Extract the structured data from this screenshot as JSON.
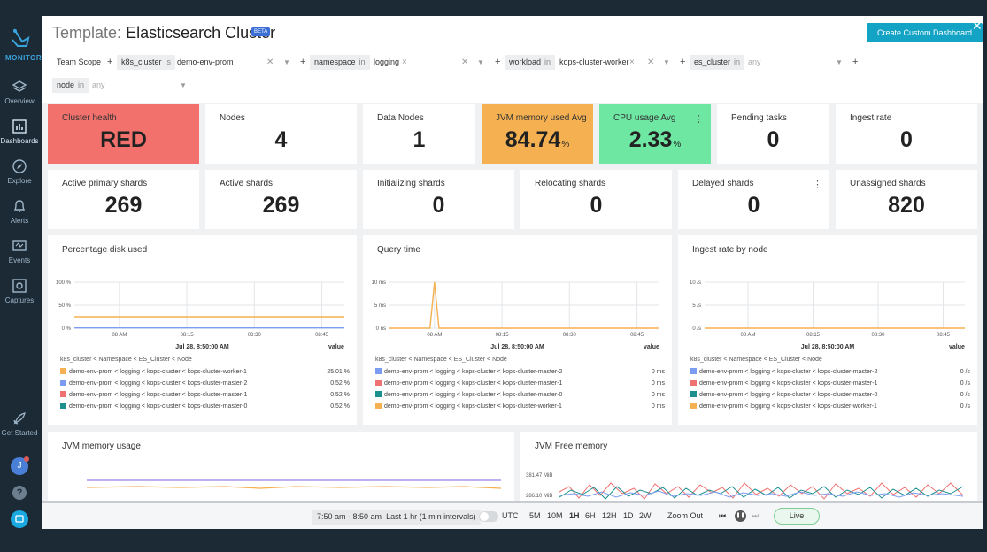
{
  "sidebar": {
    "brand": "MONITOR",
    "items": [
      {
        "label": "Overview",
        "icon": "layers-icon"
      },
      {
        "label": "Dashboards",
        "icon": "bar-chart-icon"
      },
      {
        "label": "Explore",
        "icon": "compass-icon"
      },
      {
        "label": "Alerts",
        "icon": "bell-icon"
      },
      {
        "label": "Events",
        "icon": "events-icon"
      },
      {
        "label": "Captures",
        "icon": "capture-icon"
      }
    ],
    "get_started": "Get Started",
    "avatar_initial": "J",
    "help": "?"
  },
  "header": {
    "title_prefix": "Template:",
    "title": "Elasticsearch Cluster",
    "badge": "BETA",
    "create_button": "Create Custom Dashboard",
    "close": "✕"
  },
  "filters": {
    "team_scope": "Team Scope",
    "k8s_cluster": {
      "key": "k8s_cluster",
      "op": "is",
      "value": "demo-env-prom"
    },
    "namespace": {
      "key": "namespace",
      "op": "in",
      "value": "logging"
    },
    "workload": {
      "key": "workload",
      "op": "in",
      "value": "kops-cluster-worker"
    },
    "es_cluster": {
      "key": "es_cluster",
      "op": "in",
      "value": "any"
    },
    "node": {
      "key": "node",
      "op": "in",
      "value": "any"
    }
  },
  "row1": [
    {
      "label": "Cluster health",
      "value": "RED",
      "unit": "",
      "color": "#f3716c"
    },
    {
      "label": "Nodes",
      "value": "4",
      "unit": ""
    },
    {
      "label": "Data Nodes",
      "value": "1",
      "unit": ""
    },
    {
      "label": "JVM memory used Avg",
      "value": "84.74",
      "unit": "%",
      "color": "#f5b151"
    },
    {
      "label": "CPU usage Avg",
      "value": "2.33",
      "unit": "%",
      "color": "#6ee7a3"
    },
    {
      "label": "Pending tasks",
      "value": "0",
      "unit": ""
    },
    {
      "label": "Ingest rate",
      "value": "0",
      "unit": ""
    }
  ],
  "row2": [
    {
      "label": "Active primary shards",
      "value": "269"
    },
    {
      "label": "Active shards",
      "value": "269"
    },
    {
      "label": "Initializing shards",
      "value": "0"
    },
    {
      "label": "Relocating shards",
      "value": "0"
    },
    {
      "label": "Delayed shards",
      "value": "0"
    },
    {
      "label": "Unassigned shards",
      "value": "820"
    }
  ],
  "panels": [
    {
      "title": "Percentage disk used",
      "time": "Jul 28, 8:50:00 AM",
      "value_header": "value",
      "hierarchy": "k8s_cluster < Namespace < ES_Cluster < Node",
      "y_ticks": [
        "100 %",
        "50 %",
        "0 %"
      ],
      "x_ticks": [
        "08 AM",
        "08:15",
        "08:30",
        "08:45"
      ],
      "legend": [
        {
          "label": "demo-env-prom < logging < kops-cluster < kops-cluster-worker-1",
          "value": "25.01 %",
          "color": "#f5b151"
        },
        {
          "label": "demo-env-prom < logging < kops-cluster < kops-cluster-master-2",
          "value": "0.52 %",
          "color": "#7b9cf0"
        },
        {
          "label": "demo-env-prom < logging < kops-cluster < kops-cluster-master-1",
          "value": "0.52 %",
          "color": "#f07171"
        },
        {
          "label": "demo-env-prom < logging < kops-cluster < kops-cluster-master-0",
          "value": "0.52 %",
          "color": "#1c8f8f"
        }
      ]
    },
    {
      "title": "Query time",
      "time": "Jul 28, 8:50:00 AM",
      "value_header": "value",
      "hierarchy": "k8s_cluster < Namespace < ES_Cluster < Node",
      "y_ticks": [
        "10 ms",
        "5 ms",
        "0 ns"
      ],
      "x_ticks": [
        "08 AM",
        "08:15",
        "08:30",
        "08:45"
      ],
      "legend": [
        {
          "label": "demo-env-prom < logging < kops-cluster < kops-cluster-master-2",
          "value": "0 ms",
          "color": "#7b9cf0"
        },
        {
          "label": "demo-env-prom < logging < kops-cluster < kops-cluster-master-1",
          "value": "0 ms",
          "color": "#f07171"
        },
        {
          "label": "demo-env-prom < logging < kops-cluster < kops-cluster-master-0",
          "value": "0 ms",
          "color": "#1c8f8f"
        },
        {
          "label": "demo-env-prom < logging < kops-cluster < kops-cluster-worker-1",
          "value": "0 ms",
          "color": "#f5b151"
        }
      ]
    },
    {
      "title": "Ingest rate by node",
      "time": "Jul 28, 8:50:00 AM",
      "value_header": "value",
      "hierarchy": "k8s_cluster < Namespace < ES_Cluster < Node",
      "y_ticks": [
        "10 /s",
        "5 /s",
        "0 /s"
      ],
      "x_ticks": [
        "08 AM",
        "08:15",
        "08:30",
        "08:45"
      ],
      "legend": [
        {
          "label": "demo-env-prom < logging < kops-cluster < kops-cluster-master-2",
          "value": "0 /s",
          "color": "#7b9cf0"
        },
        {
          "label": "demo-env-prom < logging < kops-cluster < kops-cluster-master-1",
          "value": "0 /s",
          "color": "#f07171"
        },
        {
          "label": "demo-env-prom < logging < kops-cluster < kops-cluster-master-0",
          "value": "0 /s",
          "color": "#1c8f8f"
        },
        {
          "label": "demo-env-prom < logging < kops-cluster < kops-cluster-worker-1",
          "value": "0 /s",
          "color": "#f5b151"
        }
      ]
    }
  ],
  "chart_data": [
    {
      "type": "line",
      "title": "Percentage disk used",
      "x": [
        "07:50",
        "08:50"
      ],
      "ylim": [
        0,
        100
      ],
      "series": [
        {
          "name": "demo-env-prom < logging < kops-cluster < kops-cluster-worker-1",
          "values": [
            25.01,
            25.01
          ]
        },
        {
          "name": "demo-env-prom < logging < kops-cluster < kops-cluster-master-2",
          "values": [
            0.52,
            0.52
          ]
        }
      ]
    },
    {
      "type": "line",
      "title": "Query time",
      "x": [
        "07:50",
        "07:59",
        "08:00",
        "08:01",
        "08:50"
      ],
      "ylim": [
        0,
        10
      ],
      "series": [
        {
          "name": "demo-env-prom < logging < kops-cluster < kops-cluster-worker-1",
          "values": [
            0,
            0,
            10,
            0,
            0
          ]
        }
      ]
    },
    {
      "type": "line",
      "title": "Ingest rate by node",
      "x": [
        "07:50",
        "08:50"
      ],
      "ylim": [
        0,
        10
      ],
      "series": [
        {
          "name": "demo-env-prom < logging < kops-cluster < kops-cluster-worker-1",
          "values": [
            0,
            0
          ]
        }
      ]
    }
  ],
  "bottom_panels": {
    "jvm_memory": "JVM memory usage",
    "jvm_free": "JVM Free memory",
    "jvm_free_ticks": [
      "381.47 MiB",
      "286.10 MiB"
    ]
  },
  "footer": {
    "range": "7:50 am - 8:50 am",
    "range_desc": "Last 1 hr (1 min intervals)",
    "utc": "UTC",
    "presets": [
      "5M",
      "10M",
      "1H",
      "6H",
      "12H",
      "1D",
      "2W"
    ],
    "zoom_out": "Zoom Out",
    "live": "Live"
  }
}
